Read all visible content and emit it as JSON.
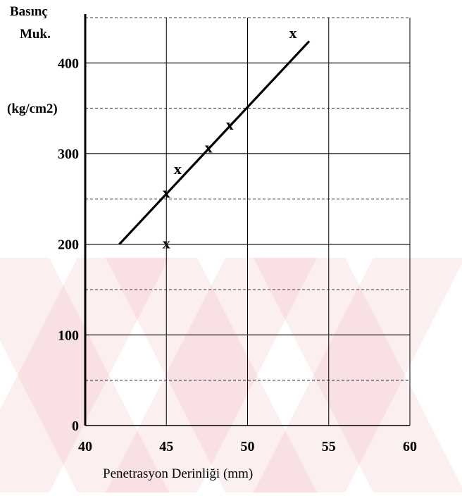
{
  "chart_data": {
    "type": "scatter",
    "title": "",
    "ylabel_lines": [
      "Basınç",
      "Muk.",
      "(kg/cm2)"
    ],
    "xlabel": "Penetrasyon Derinliği (mm)",
    "xlim": [
      40,
      60
    ],
    "ylim": [
      0,
      450
    ],
    "x_ticks": [
      40,
      45,
      50,
      55,
      60
    ],
    "y_ticks": [
      0,
      100,
      200,
      300,
      400
    ],
    "grid": true,
    "point_marker": "x",
    "points": [
      {
        "x": 45.0,
        "y": 200
      },
      {
        "x": 45.0,
        "y": 256
      },
      {
        "x": 45.7,
        "y": 282
      },
      {
        "x": 47.6,
        "y": 306
      },
      {
        "x": 48.9,
        "y": 331
      },
      {
        "x": 52.8,
        "y": 432
      }
    ],
    "fit_line": {
      "x": [
        42.1,
        53.8
      ],
      "y": [
        200,
        424
      ]
    },
    "colors": {
      "line": "#000000",
      "grid": "#000000",
      "watermark": "#d11f2a"
    }
  }
}
